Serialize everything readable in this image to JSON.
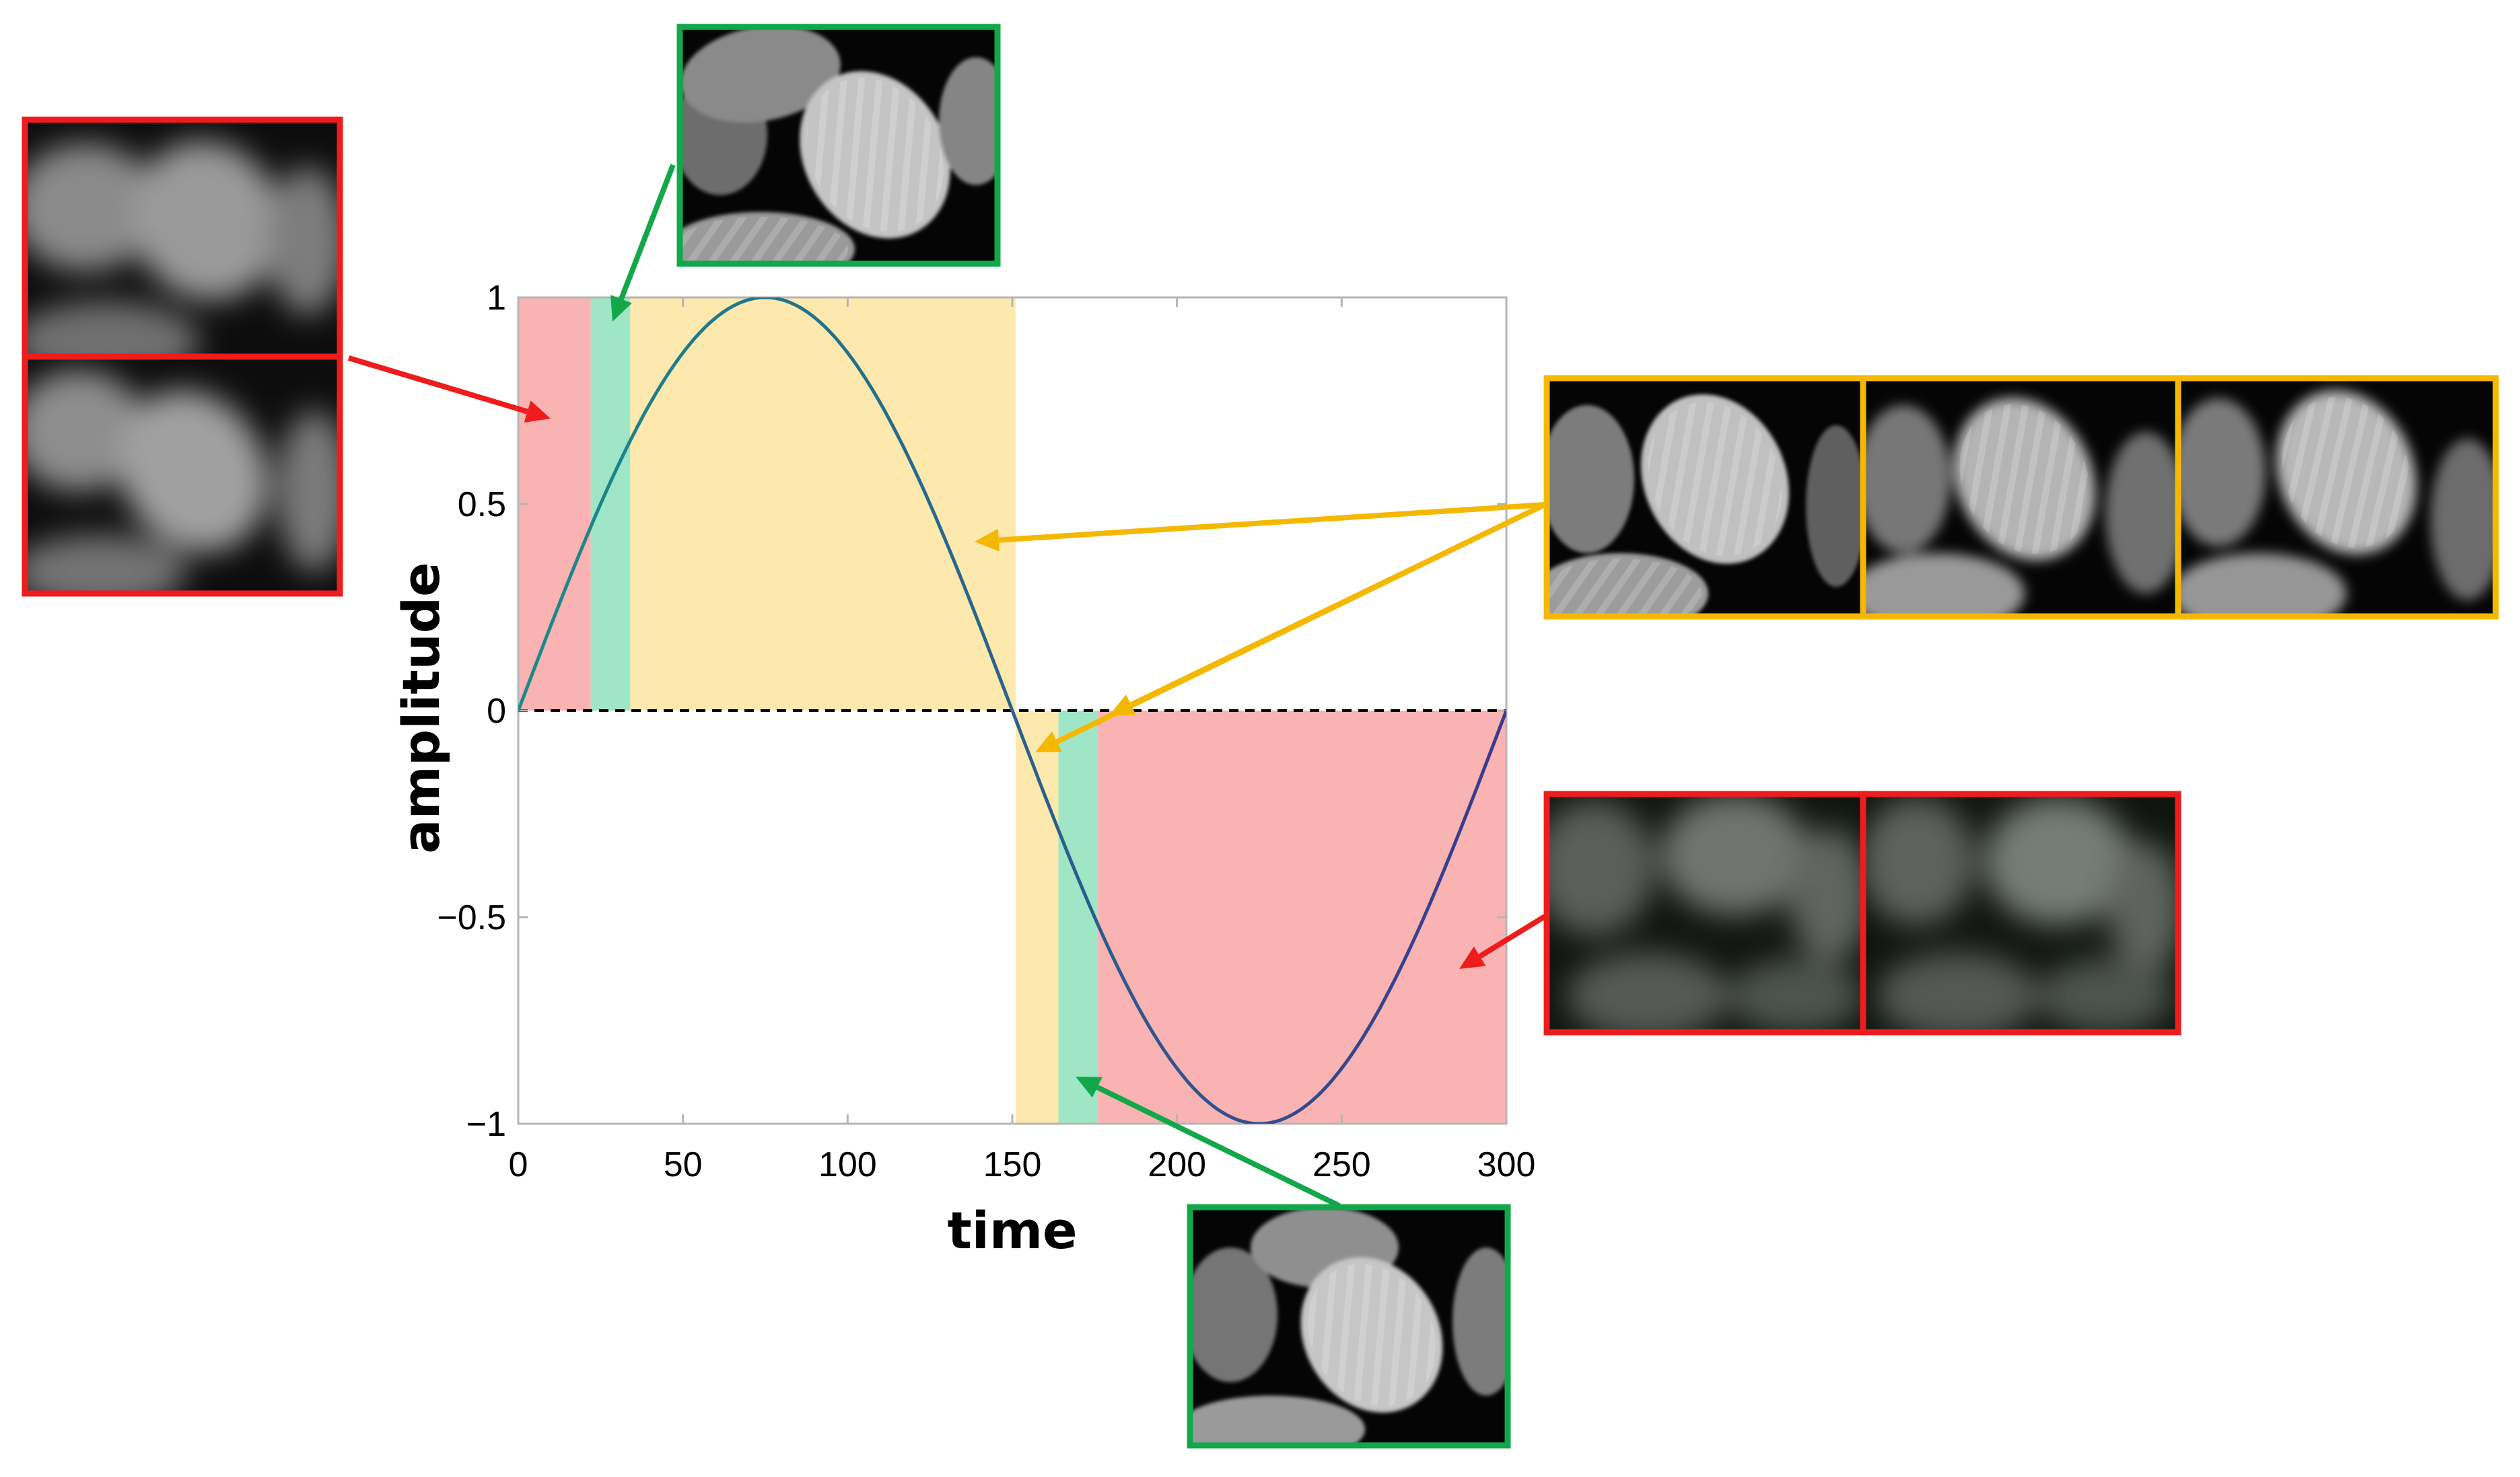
{
  "colors": {
    "red_frame": "#ee1c1c",
    "green_frame": "#12a84a",
    "yellow_frame": "#f5b800",
    "red_band": "#f9b3b3",
    "green_band": "#9fe6c6",
    "yellow_band": "#fde9ae",
    "curve_start": "#1a8a8a",
    "curve_end": "#3a3a8f"
  },
  "chart_data": {
    "type": "line",
    "xlabel": "time",
    "ylabel": "amplitude",
    "xlim": [
      0,
      300
    ],
    "ylim": [
      -1,
      1
    ],
    "x_ticks": [
      0,
      50,
      100,
      150,
      200,
      250,
      300
    ],
    "x_tick_labels": [
      "0",
      "50",
      "100",
      "150",
      "200",
      "250",
      "300"
    ],
    "y_ticks": [
      1,
      0.5,
      0,
      -0.5,
      -1
    ],
    "y_tick_labels": [
      "1",
      "0.5",
      "0",
      "−0.5",
      "−1"
    ],
    "grid": false,
    "reference_line": {
      "y": 0,
      "style": "dashed"
    },
    "series": [
      {
        "function": "sine",
        "period": 300,
        "amplitude": 1,
        "samples": 301
      }
    ],
    "shaded_regions": [
      {
        "category": "red",
        "x0": 0,
        "x1": 22,
        "y0": 0,
        "y1": 1
      },
      {
        "category": "green",
        "x0": 22,
        "x1": 34,
        "y0": 0,
        "y1": 1
      },
      {
        "category": "yellow",
        "x0": 34,
        "x1": 151,
        "y0": 0,
        "y1": 1
      },
      {
        "category": "yellow",
        "x0": 151,
        "x1": 164,
        "y0": -1,
        "y1": 0
      },
      {
        "category": "green",
        "x0": 164,
        "x1": 176,
        "y0": -1,
        "y1": 0
      },
      {
        "category": "red",
        "x0": 176,
        "x1": 300,
        "y0": -1,
        "y1": 0
      }
    ]
  },
  "thumbnail_groups": [
    {
      "name": "red-group-left",
      "category": "red",
      "frames": 2,
      "layout": "vertical"
    },
    {
      "name": "green-group-top",
      "category": "green",
      "frames": 1,
      "layout": "single"
    },
    {
      "name": "yellow-group-right",
      "category": "yellow",
      "frames": 3,
      "layout": "horizontal"
    },
    {
      "name": "red-group-right",
      "category": "red",
      "frames": 2,
      "layout": "horizontal"
    },
    {
      "name": "green-group-bottom",
      "category": "green",
      "frames": 1,
      "layout": "single"
    }
  ]
}
